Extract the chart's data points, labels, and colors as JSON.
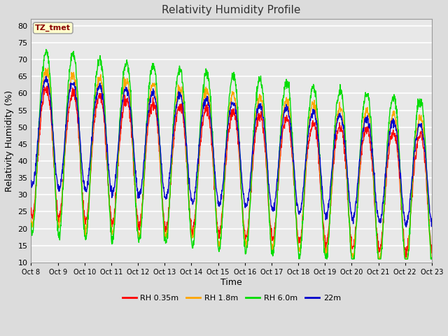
{
  "title": "Relativity Humidity Profile",
  "xlabel": "Time",
  "ylabel": "Relativity Humidity (%)",
  "ylim": [
    10,
    82
  ],
  "yticks": [
    10,
    15,
    20,
    25,
    30,
    35,
    40,
    45,
    50,
    55,
    60,
    65,
    70,
    75,
    80
  ],
  "xtick_labels": [
    "Oct 8",
    "Oct 9",
    "Oct 10",
    "Oct 11",
    "Oct 12",
    "Oct 13",
    "Oct 14",
    "Oct 15",
    "Oct 16",
    "Oct 17",
    "Oct 18",
    "Oct 19",
    "Oct 20",
    "Oct 21",
    "Oct 22",
    "Oct 23"
  ],
  "annotation_text": "TZ_tmet",
  "annotation_color": "#8B0000",
  "annotation_bg": "#FFFFCC",
  "legend_labels": [
    "RH 0.35m",
    "RH 1.8m",
    "RH 6.0m",
    "22m"
  ],
  "line_colors": [
    "#FF0000",
    "#FFA500",
    "#00DD00",
    "#0000CC"
  ],
  "bg_color": "#DCDCDC",
  "plot_bg": "#E8E8E8",
  "grid_color": "#FFFFFF",
  "days": 15
}
